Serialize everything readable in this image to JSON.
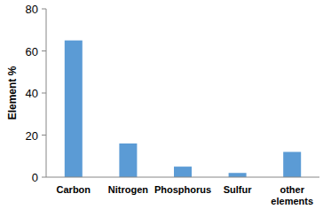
{
  "chart_data": {
    "type": "bar",
    "y_label": "Element %",
    "categories": [
      "Carbon",
      "Nitrogen",
      "Phosphorus",
      "Sulfur",
      "other elements"
    ],
    "values": [
      65,
      16,
      5,
      2,
      12
    ],
    "color": "#5b9bd5",
    "ylim": [
      0,
      80
    ],
    "yticks": [
      0,
      20,
      40,
      60,
      80
    ],
    "grid": false
  }
}
